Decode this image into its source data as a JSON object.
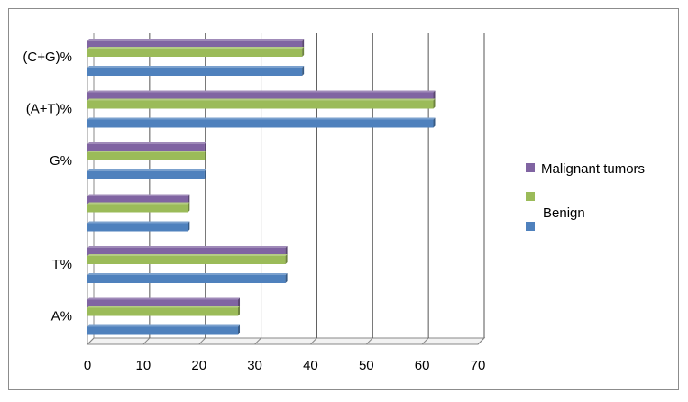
{
  "chart_data": {
    "type": "bar",
    "orientation": "horizontal",
    "style": "3d",
    "categories": [
      "A%",
      "T%",
      "",
      "G%",
      "(A+T)%",
      "(C+G)%"
    ],
    "series": [
      {
        "name": "Malignant tumors",
        "color": "#8064a2",
        "values": [
          27,
          35.5,
          18,
          21,
          62,
          38.5
        ]
      },
      {
        "name": "Benign",
        "color": "#9bbb59",
        "values": [
          27,
          35.5,
          18,
          21,
          62,
          38.5
        ]
      },
      {
        "name": "",
        "color": "#4f81bd",
        "values": [
          27,
          35.5,
          18,
          21,
          62,
          38.5
        ]
      }
    ],
    "xlim": [
      0,
      70
    ],
    "xticks": [
      0,
      10,
      20,
      30,
      40,
      50,
      60,
      70
    ],
    "grid": true,
    "legend_position": "right"
  }
}
